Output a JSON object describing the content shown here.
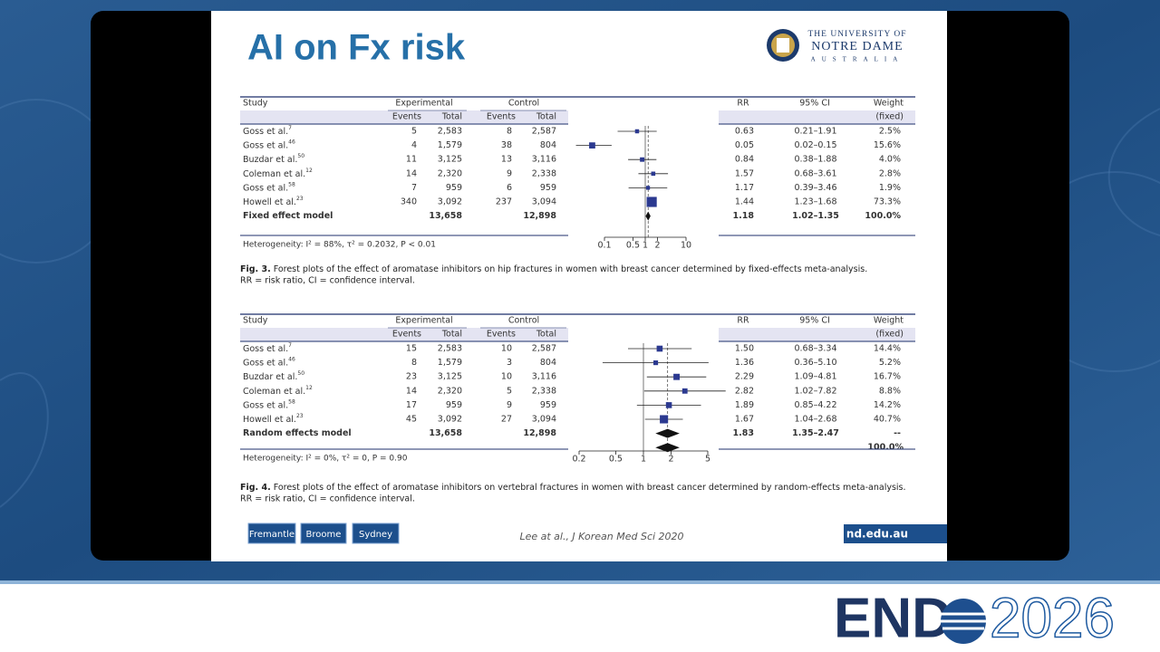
{
  "slide": {
    "title": "AI on Fx risk",
    "logo": {
      "line1": "THE UNIVERSITY OF",
      "line2": "NOTRE DAME",
      "line3": "AUSTRALIA"
    }
  },
  "figures": [
    {
      "header": {
        "study": "Study",
        "experimental": "Experimental",
        "control": "Control",
        "events": "Events",
        "total": "Total",
        "rr": "RR",
        "ci": "95% CI",
        "weight": "Weight",
        "weight_sub": "(fixed)"
      },
      "rows": [
        {
          "study": "Goss et al.",
          "ref": "7",
          "e_events": "5",
          "e_total": "2,583",
          "c_events": "8",
          "c_total": "2,587",
          "rr": "0.63",
          "ci": "0.21–1.91",
          "weight": "2.5%"
        },
        {
          "study": "Goss et al.",
          "ref": "46",
          "e_events": "4",
          "e_total": "1,579",
          "c_events": "38",
          "c_total": "804",
          "rr": "0.05",
          "ci": "0.02–0.15",
          "weight": "15.6%"
        },
        {
          "study": "Buzdar et al.",
          "ref": "50",
          "e_events": "11",
          "e_total": "3,125",
          "c_events": "13",
          "c_total": "3,116",
          "rr": "0.84",
          "ci": "0.38–1.88",
          "weight": "4.0%"
        },
        {
          "study": "Coleman et al.",
          "ref": "12",
          "e_events": "14",
          "e_total": "2,320",
          "c_events": "9",
          "c_total": "2,338",
          "rr": "1.57",
          "ci": "0.68–3.61",
          "weight": "2.8%"
        },
        {
          "study": "Goss et al.",
          "ref": "58",
          "e_events": "7",
          "e_total": "959",
          "c_events": "6",
          "c_total": "959",
          "rr": "1.17",
          "ci": "0.39–3.46",
          "weight": "1.9%"
        },
        {
          "study": "Howell et al.",
          "ref": "23",
          "e_events": "340",
          "e_total": "3,092",
          "c_events": "237",
          "c_total": "3,094",
          "rr": "1.44",
          "ci": "1.23–1.68",
          "weight": "73.3%"
        }
      ],
      "summary": {
        "study": "Fixed effect model",
        "e_total": "13,658",
        "c_total": "12,898",
        "rr": "1.18",
        "ci": "1.02–1.35",
        "weight": "100.0%"
      },
      "heterogeneity": "Heterogeneity: I² = 88%, τ² = 0.2032, P < 0.01",
      "axis": {
        "lim": [
          0.1,
          10
        ],
        "ticks": [
          0.1,
          0.5,
          1,
          2,
          10
        ]
      },
      "caption_label": "Fig. 3.",
      "caption": " Forest plots of the effect of aromatase inhibitors on hip fractures in women with breast cancer determined by fixed-effects meta-analysis.",
      "caption2": "RR = risk ratio, CI = confidence interval."
    },
    {
      "header": {
        "study": "Study",
        "experimental": "Experimental",
        "control": "Control",
        "events": "Events",
        "total": "Total",
        "rr": "RR",
        "ci": "95% CI",
        "weight": "Weight",
        "weight_sub": "(fixed)"
      },
      "rows": [
        {
          "study": "Goss et al.",
          "ref": "7",
          "e_events": "15",
          "e_total": "2,583",
          "c_events": "10",
          "c_total": "2,587",
          "rr": "1.50",
          "ci": "0.68–3.34",
          "weight": "14.4%"
        },
        {
          "study": "Goss et al.",
          "ref": "46",
          "e_events": "8",
          "e_total": "1,579",
          "c_events": "3",
          "c_total": "804",
          "rr": "1.36",
          "ci": "0.36–5.10",
          "weight": "5.2%"
        },
        {
          "study": "Buzdar et al.",
          "ref": "50",
          "e_events": "23",
          "e_total": "3,125",
          "c_events": "10",
          "c_total": "3,116",
          "rr": "2.29",
          "ci": "1.09–4.81",
          "weight": "16.7%"
        },
        {
          "study": "Coleman et al.",
          "ref": "12",
          "e_events": "14",
          "e_total": "2,320",
          "c_events": "5",
          "c_total": "2,338",
          "rr": "2.82",
          "ci": "1.02–7.82",
          "weight": "8.8%"
        },
        {
          "study": "Goss et al.",
          "ref": "58",
          "e_events": "17",
          "e_total": "959",
          "c_events": "9",
          "c_total": "959",
          "rr": "1.89",
          "ci": "0.85–4.22",
          "weight": "14.2%"
        },
        {
          "study": "Howell et al.",
          "ref": "23",
          "e_events": "45",
          "e_total": "3,092",
          "c_events": "27",
          "c_total": "3,094",
          "rr": "1.67",
          "ci": "1.04–2.68",
          "weight": "40.7%"
        }
      ],
      "summary": {
        "study": "Random effects model",
        "e_total": "13,658",
        "c_total": "12,898",
        "rr": "1.83",
        "ci": "1.35–2.47",
        "weight": "--",
        "weight_extra": "100.0%"
      },
      "heterogeneity": "Heterogeneity: I² = 0%, τ² = 0, P = 0.90",
      "axis": {
        "lim": [
          0.2,
          5
        ],
        "ticks": [
          0.2,
          0.5,
          1,
          2,
          5
        ]
      },
      "caption_label": "Fig. 4.",
      "caption": " Forest plots of the effect of aromatase inhibitors on vertebral fractures in women with breast cancer determined by random-effects meta-analysis.",
      "caption2": "RR = risk ratio, CI = confidence interval."
    }
  ],
  "footer": {
    "buttons": [
      "Fremantle",
      "Broome",
      "Sydney"
    ],
    "citation": "Lee at al., J Korean Med Sci 2020",
    "url": "nd.edu.au"
  },
  "endo": {
    "left": "END",
    "right": "2026"
  }
}
